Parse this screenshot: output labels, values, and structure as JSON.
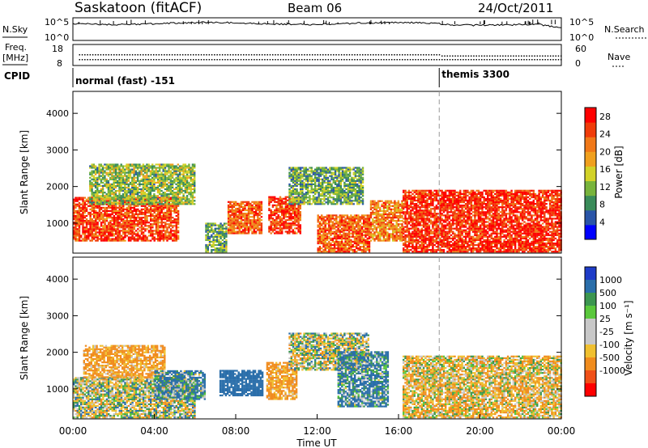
{
  "header": {
    "station": "Saskatoon (fitACF)",
    "beam": "Beam 06",
    "date": "24/Oct/2011"
  },
  "status_panels": {
    "nsky_label": "N.Sky",
    "nsearch_label": "N.Search",
    "nsky_ticks": [
      "10^5",
      "10^0"
    ],
    "nsearch_ticks": [
      "10^5",
      "10^0"
    ],
    "freq_label": "Freq.",
    "freq_unit": "[MHz]",
    "freq_ticks": [
      "18",
      "8"
    ],
    "nave_label": "Nave",
    "nave_ticks": [
      "60",
      "0"
    ],
    "cpid_label": "CPID",
    "cpid_segments": [
      {
        "label": "normal (fast) -151",
        "start_hour": 0
      },
      {
        "label": "themis 3300",
        "start_hour": 18
      }
    ]
  },
  "colors": {
    "power_scale": [
      "#0000ff",
      "#2a55a8",
      "#3a8c5a",
      "#78b43c",
      "#d2d228",
      "#f0a01e",
      "#f07818",
      "#f03c0a",
      "#ff0000"
    ],
    "velocity_scale": [
      "#ff0000",
      "#f05018",
      "#f08c1e",
      "#f0c030",
      "#c8c8c8",
      "#c8c8c8",
      "#5ac83c",
      "#3c9650",
      "#2a6eaa",
      "#1e3cc8"
    ]
  },
  "chart_data": [
    {
      "type": "heatmap",
      "panel": "power",
      "ylabel": "Slant Range [km]",
      "ylim": [
        180,
        4600
      ],
      "yticks": [
        "1000",
        "2000",
        "3000",
        "4000"
      ],
      "xlim_hours": [
        0,
        24
      ],
      "colorbar": {
        "label": "Power [dB]",
        "ticks": [
          "4",
          "8",
          "12",
          "16",
          "20",
          "24",
          "28"
        ],
        "range": [
          0,
          30
        ]
      },
      "echo_regions": [
        {
          "t_start": 0.0,
          "t_end": 5.2,
          "range_low": 500,
          "range_high": 1700,
          "mean_power_db": 26
        },
        {
          "t_start": 0.8,
          "t_end": 6.0,
          "range_low": 1500,
          "range_high": 2600,
          "mean_power_db": 12
        },
        {
          "t_start": 6.5,
          "t_end": 7.5,
          "range_low": 200,
          "range_high": 1000,
          "mean_power_db": 10
        },
        {
          "t_start": 7.6,
          "t_end": 9.3,
          "range_low": 700,
          "range_high": 1600,
          "mean_power_db": 24
        },
        {
          "t_start": 9.6,
          "t_end": 11.2,
          "range_low": 700,
          "range_high": 1700,
          "mean_power_db": 27
        },
        {
          "t_start": 10.6,
          "t_end": 14.2,
          "range_low": 1500,
          "range_high": 2500,
          "mean_power_db": 10
        },
        {
          "t_start": 12.0,
          "t_end": 14.6,
          "range_low": 200,
          "range_high": 1200,
          "mean_power_db": 24
        },
        {
          "t_start": 14.6,
          "t_end": 16.2,
          "range_low": 500,
          "range_high": 1600,
          "mean_power_db": 22
        },
        {
          "t_start": 16.2,
          "t_end": 24.0,
          "range_low": 200,
          "range_high": 1900,
          "mean_power_db": 28
        }
      ]
    },
    {
      "type": "heatmap",
      "panel": "velocity",
      "xlabel": "Time UT",
      "ylabel": "Slant Range [km]",
      "ylim": [
        180,
        4600
      ],
      "yticks": [
        "1000",
        "2000",
        "3000",
        "4000"
      ],
      "xlim_hours": [
        0,
        24
      ],
      "xticks": [
        "00:00",
        "04:00",
        "08:00",
        "12:00",
        "16:00",
        "20:00",
        "00:00"
      ],
      "colorbar": {
        "label": "Velocity [m s⁻¹]",
        "ticks": [
          "1000",
          "500",
          "100",
          "25",
          "-25",
          "-100",
          "-500",
          "-1000"
        ]
      },
      "echo_regions": [
        {
          "t_start": 0.0,
          "t_end": 6.0,
          "range_low": 200,
          "range_high": 1300,
          "dominant_velocity": 0
        },
        {
          "t_start": 0.5,
          "t_end": 4.5,
          "range_low": 1300,
          "range_high": 2200,
          "dominant_velocity": -150
        },
        {
          "t_start": 4.0,
          "t_end": 6.5,
          "range_low": 700,
          "range_high": 1500,
          "dominant_velocity": 120
        },
        {
          "t_start": 7.2,
          "t_end": 9.3,
          "range_low": 800,
          "range_high": 1500,
          "dominant_velocity": 300
        },
        {
          "t_start": 9.5,
          "t_end": 11.0,
          "range_low": 700,
          "range_high": 1700,
          "dominant_velocity": -150
        },
        {
          "t_start": 10.6,
          "t_end": 14.5,
          "range_low": 1500,
          "range_high": 2500,
          "dominant_velocity": 0
        },
        {
          "t_start": 13.0,
          "t_end": 15.5,
          "range_low": 500,
          "range_high": 2000,
          "dominant_velocity": 120
        },
        {
          "t_start": 16.2,
          "t_end": 24.0,
          "range_low": 200,
          "range_high": 1900,
          "dominant_velocity": -60
        }
      ]
    }
  ]
}
